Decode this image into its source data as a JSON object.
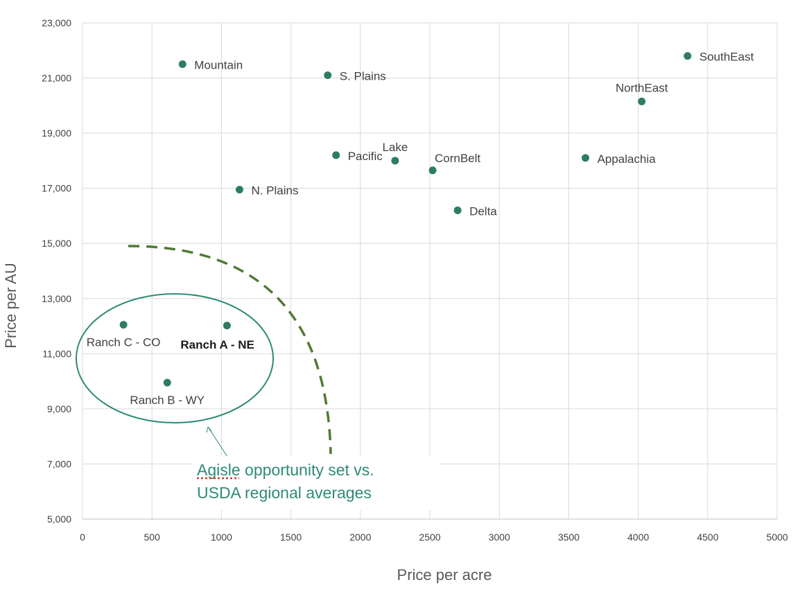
{
  "chart_data": {
    "type": "scatter",
    "title": "",
    "xlabel": "Price per acre",
    "ylabel": "Price per AU",
    "xlim": [
      0,
      5000
    ],
    "ylim": [
      5000,
      23000
    ],
    "x_ticks": [
      0,
      500,
      1000,
      1500,
      2000,
      2500,
      3000,
      3500,
      4000,
      4500,
      5000
    ],
    "y_ticks": [
      5000,
      7000,
      9000,
      11000,
      13000,
      15000,
      17000,
      19000,
      21000,
      23000
    ],
    "y_tick_labels": [
      "5,000",
      "7,000",
      "9,000",
      "11,000",
      "13,000",
      "15,000",
      "17,000",
      "19,000",
      "21,000",
      "23,000"
    ],
    "grid": true,
    "points": [
      {
        "label": "Mountain",
        "x": 720,
        "y": 21500,
        "pos": "right"
      },
      {
        "label": "S. Plains",
        "x": 1765,
        "y": 21100,
        "pos": "right"
      },
      {
        "label": "SouthEast",
        "x": 4355,
        "y": 21800,
        "pos": "right"
      },
      {
        "label": "NorthEast",
        "x": 4025,
        "y": 20150,
        "pos": "above"
      },
      {
        "label": "Pacific",
        "x": 1825,
        "y": 18200,
        "pos": "right"
      },
      {
        "label": "Lake",
        "x": 2250,
        "y": 18000,
        "pos": "above"
      },
      {
        "label": "CornBelt",
        "x": 2520,
        "y": 17650,
        "pos": "above-right"
      },
      {
        "label": "Appalachia",
        "x": 3620,
        "y": 18100,
        "pos": "right"
      },
      {
        "label": "N. Plains",
        "x": 1130,
        "y": 16950,
        "pos": "right"
      },
      {
        "label": "Delta",
        "x": 2700,
        "y": 16200,
        "pos": "right"
      },
      {
        "label": "Ranch C - CO",
        "x": 295,
        "y": 12050,
        "pos": "below"
      },
      {
        "label": "Ranch A - NE",
        "x": 1040,
        "y": 12020,
        "pos": "below-left",
        "bold": true
      },
      {
        "label": "Ranch B - WY",
        "x": 610,
        "y": 9950,
        "pos": "below"
      }
    ],
    "annotations": [
      {
        "text_lines": [
          "Agisle opportunity set vs.",
          "USDA regional averages"
        ]
      }
    ]
  }
}
